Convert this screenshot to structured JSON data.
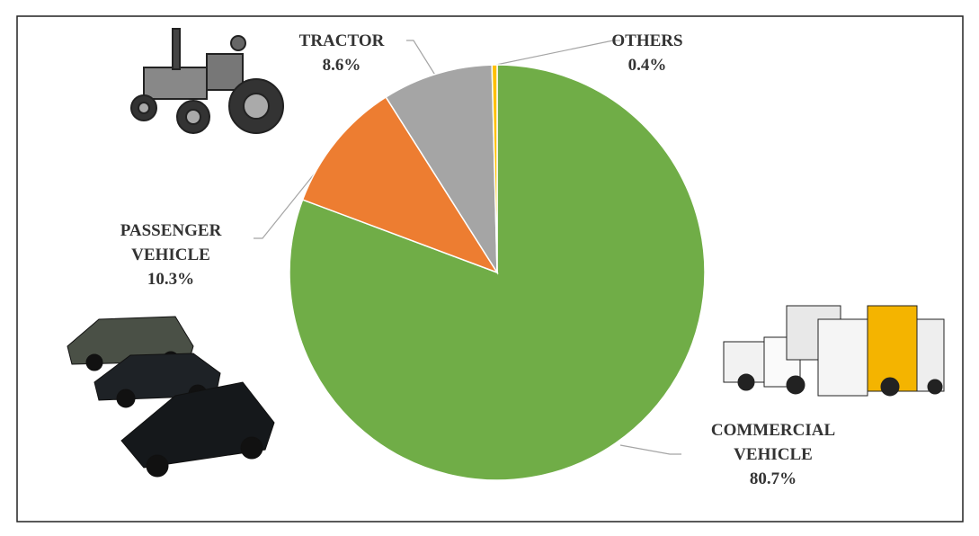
{
  "chart_data": {
    "type": "pie",
    "categories": [
      "COMMERCIAL VEHICLE",
      "PASSENGER VEHICLE",
      "TRACTOR",
      "OTHERS"
    ],
    "values": [
      80.7,
      10.3,
      8.6,
      0.4
    ],
    "value_labels": [
      "80.7%",
      "10.3%",
      "8.6%",
      "0.4%"
    ],
    "colors": [
      "#70ad47",
      "#ed7d31",
      "#a5a5a5",
      "#ffc000"
    ]
  }
}
